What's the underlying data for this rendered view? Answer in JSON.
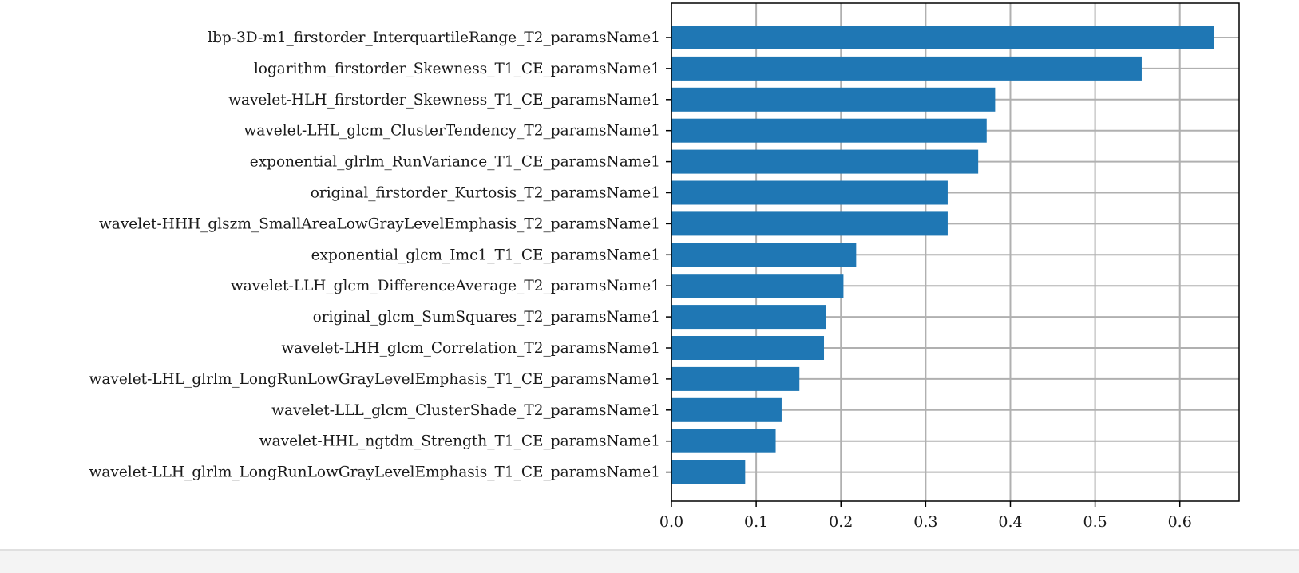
{
  "chart_data": {
    "type": "bar",
    "orientation": "horizontal",
    "title": "",
    "xlabel": "",
    "ylabel": "",
    "xlim": [
      0,
      0.67
    ],
    "xticks": [
      "0.0",
      "0.1",
      "0.2",
      "0.3",
      "0.4",
      "0.5",
      "0.6"
    ],
    "grid": true,
    "categories": [
      "lbp-3D-m1_firstorder_InterquartileRange_T2_paramsName1",
      "logarithm_firstorder_Skewness_T1_CE_paramsName1",
      "wavelet-HLH_firstorder_Skewness_T1_CE_paramsName1",
      "wavelet-LHL_glcm_ClusterTendency_T2_paramsName1",
      "exponential_glrlm_RunVariance_T1_CE_paramsName1",
      "original_firstorder_Kurtosis_T2_paramsName1",
      "wavelet-HHH_glszm_SmallAreaLowGrayLevelEmphasis_T2_paramsName1",
      "exponential_glcm_Imc1_T1_CE_paramsName1",
      "wavelet-LLH_glcm_DifferenceAverage_T2_paramsName1",
      "original_glcm_SumSquares_T2_paramsName1",
      "wavelet-LHH_glcm_Correlation_T2_paramsName1",
      "wavelet-LHL_glrlm_LongRunLowGrayLevelEmphasis_T1_CE_paramsName1",
      "wavelet-LLL_glcm_ClusterShade_T2_paramsName1",
      "wavelet-HHL_ngtdm_Strength_T1_CE_paramsName1",
      "wavelet-LLH_glrlm_LongRunLowGrayLevelEmphasis_T1_CE_paramsName1"
    ],
    "values": [
      0.64,
      0.555,
      0.382,
      0.372,
      0.362,
      0.326,
      0.326,
      0.218,
      0.203,
      0.182,
      0.18,
      0.151,
      0.13,
      0.123,
      0.087
    ],
    "bar_color": "#1f77b4"
  }
}
